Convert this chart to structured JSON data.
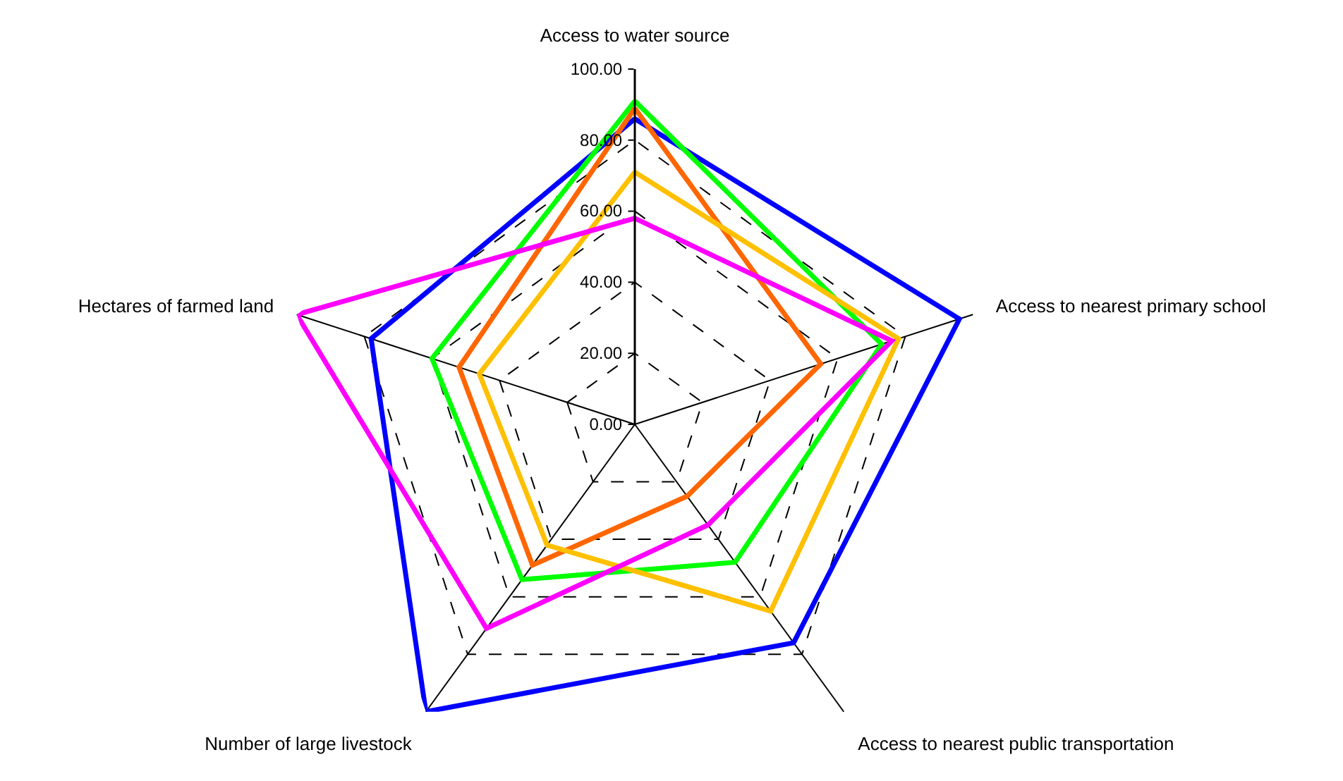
{
  "chart_data": {
    "type": "radar",
    "categories": [
      "Access to water source",
      "Access to nearest primary school",
      "Access to nearest public transportation",
      "Number of large livestock",
      "Hectares of farmed land"
    ],
    "series": [
      {
        "color": "#0000ff",
        "values": [
          86,
          96,
          76,
          100,
          78
        ]
      },
      {
        "color": "#00ff00",
        "values": [
          91,
          73,
          48,
          54,
          60
        ]
      },
      {
        "color": "#ff6600",
        "values": [
          89,
          55,
          25,
          49,
          52
        ]
      },
      {
        "color": "#ffc000",
        "values": [
          71,
          78,
          65,
          42,
          46
        ]
      },
      {
        "color": "#ff00ff",
        "values": [
          58,
          76,
          35,
          71,
          100
        ]
      }
    ],
    "ylim": [
      0,
      100
    ],
    "yticks": [
      {
        "value": 0,
        "label": "0.00"
      },
      {
        "value": 20,
        "label": "20.00"
      },
      {
        "value": 40,
        "label": "40.00"
      },
      {
        "value": 60,
        "label": "60.00"
      },
      {
        "value": 80,
        "label": "80.00"
      },
      {
        "value": 100,
        "label": "100.00"
      }
    ],
    "grid": true,
    "marker": "none",
    "line_style": "solid"
  }
}
